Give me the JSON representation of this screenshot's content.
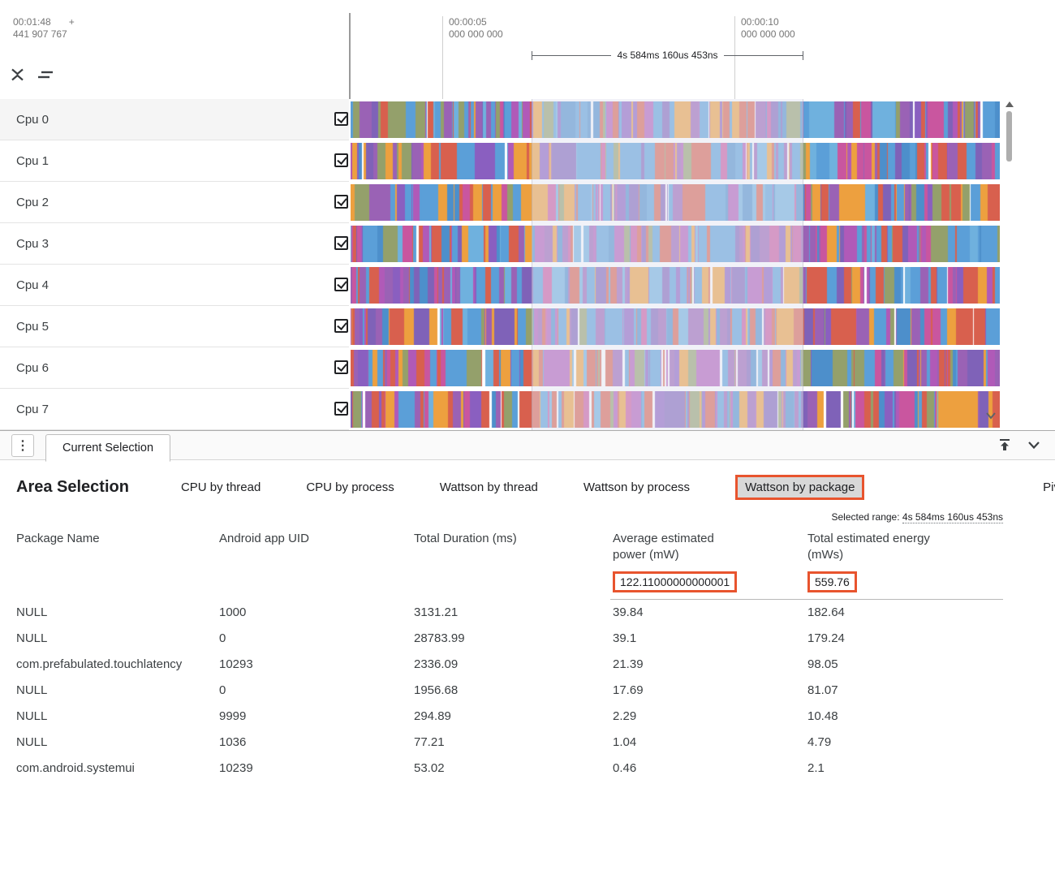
{
  "timeline": {
    "cursor": {
      "time": "00:01:48",
      "plus": "+",
      "nanos": "441 907 767"
    },
    "ticks": [
      {
        "time": "00:00:05",
        "nanos": "000 000 000"
      },
      {
        "time": "00:00:10",
        "nanos": "000 000 000"
      }
    ],
    "range_label": "4s 584ms 160us 453ns"
  },
  "tracks": [
    {
      "label": "Cpu 0",
      "checked": true
    },
    {
      "label": "Cpu 1",
      "checked": true
    },
    {
      "label": "Cpu 2",
      "checked": true
    },
    {
      "label": "Cpu 3",
      "checked": true
    },
    {
      "label": "Cpu 4",
      "checked": true
    },
    {
      "label": "Cpu 5",
      "checked": true
    },
    {
      "label": "Cpu 6",
      "checked": true
    },
    {
      "label": "Cpu 7",
      "checked": true
    }
  ],
  "bottom_bar": {
    "tab_label": "Current Selection"
  },
  "panel": {
    "title": "Area Selection",
    "tabs": [
      {
        "label": "CPU by thread"
      },
      {
        "label": "CPU by process"
      },
      {
        "label": "Wattson by thread"
      },
      {
        "label": "Wattson by process"
      },
      {
        "label": "Wattson by package"
      },
      {
        "label": "Piv"
      }
    ],
    "selected_range_prefix": "Selected range:",
    "selected_range_value": "4s 584ms 160us 453ns",
    "table": {
      "columns": [
        "Package Name",
        "Android app UID",
        "Total Duration (ms)",
        "Average estimated power (mW)",
        "Total estimated energy (mWs)"
      ],
      "summary_avg_power": "122.11000000000001",
      "summary_total_energy": "559.76",
      "rows": [
        [
          "NULL",
          "1000",
          "3131.21",
          "39.84",
          "182.64"
        ],
        [
          "NULL",
          "0",
          "28783.99",
          "39.1",
          "179.24"
        ],
        [
          "com.prefabulated.touchlatency",
          "10293",
          "2336.09",
          "21.39",
          "98.05"
        ],
        [
          "NULL",
          "0",
          "1956.68",
          "17.69",
          "81.07"
        ],
        [
          "NULL",
          "9999",
          "294.89",
          "2.29",
          "10.48"
        ],
        [
          "NULL",
          "1036",
          "77.21",
          "1.04",
          "4.79"
        ],
        [
          "com.android.systemui",
          "10239",
          "53.02",
          "0.46",
          "2.1"
        ]
      ]
    }
  },
  "colors": {
    "highlight_border": "#e8542e",
    "track_palette": [
      "#5b9fd8",
      "#5b9fd8",
      "#5b9fd8",
      "#4d8fcb",
      "#6fb1de",
      "#9a62b5",
      "#9a62b5",
      "#8a5fc0",
      "#b05ab8",
      "#7f62b8",
      "#d8604e",
      "#d8604e",
      "#eda03f",
      "#94a06b",
      "#c9569f"
    ]
  }
}
